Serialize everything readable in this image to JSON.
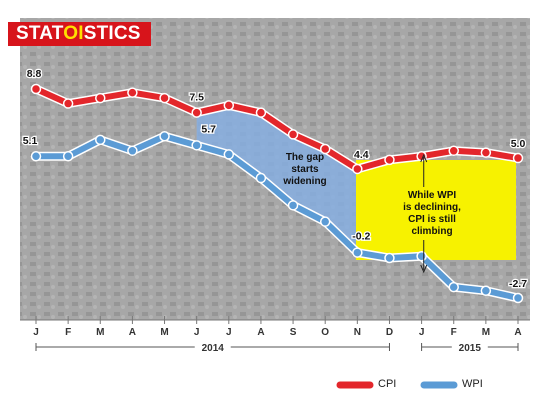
{
  "brand": {
    "part1": "STAT",
    "part2": "OI",
    "part3": "STICS"
  },
  "chart_data": {
    "type": "line",
    "x": [
      "J",
      "F",
      "M",
      "A",
      "M",
      "J",
      "J",
      "A",
      "S",
      "O",
      "N",
      "D",
      "J",
      "F",
      "M",
      "A"
    ],
    "year_labels": [
      {
        "label": "2014",
        "from": 0,
        "to": 11
      },
      {
        "label": "2015",
        "from": 12,
        "to": 15
      }
    ],
    "series": [
      {
        "name": "CPI",
        "color": "#e3262b",
        "values": [
          8.8,
          8.0,
          8.3,
          8.6,
          8.3,
          7.5,
          7.9,
          7.5,
          6.3,
          5.5,
          4.4,
          4.9,
          5.1,
          5.4,
          5.3,
          5.0
        ]
      },
      {
        "name": "WPI",
        "color": "#5b9bd5",
        "values": [
          5.1,
          5.1,
          6.0,
          5.4,
          6.2,
          5.7,
          5.2,
          3.9,
          2.4,
          1.5,
          -0.2,
          -0.5,
          -0.4,
          -2.1,
          -2.3,
          -2.7
        ]
      }
    ],
    "data_labels": [
      {
        "series": 0,
        "index": 0,
        "text": "8.8"
      },
      {
        "series": 0,
        "index": 5,
        "text": "7.5"
      },
      {
        "series": 0,
        "index": 10,
        "text": "4.4"
      },
      {
        "series": 0,
        "index": 15,
        "text": "5.0"
      },
      {
        "series": 1,
        "index": 0,
        "text": "5.1"
      },
      {
        "series": 1,
        "index": 5,
        "text": "5.7"
      },
      {
        "series": 1,
        "index": 10,
        "text": "-0.2"
      },
      {
        "series": 1,
        "index": 15,
        "text": "-2.7"
      }
    ],
    "annotations": [
      {
        "lines": [
          "The gap",
          "starts",
          "widening"
        ]
      },
      {
        "lines": [
          "While WPI",
          "is declining,",
          "CPI is still",
          "climbing"
        ]
      }
    ],
    "legend": {
      "position": "bottom-right"
    },
    "colors": {
      "gap_fill": "#86aee0",
      "highlight": "#f7f200",
      "background": "#a6a6a6"
    }
  }
}
